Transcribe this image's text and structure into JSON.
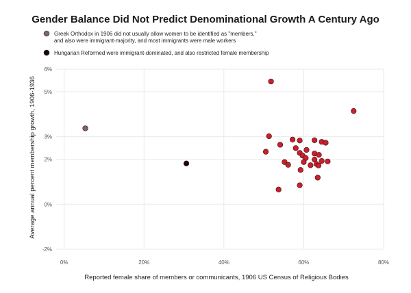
{
  "chart_data": {
    "type": "scatter",
    "title": "Gender Balance Did Not Predict Denominational Growth A Century Ago",
    "xlabel": "Reported female share of members or communicants, 1906 US Census of Religious Bodies",
    "ylabel": "Average annual percent membership growth, 1906-1936",
    "xlim": [
      -0.02,
      0.8
    ],
    "ylim": [
      -0.02,
      0.06
    ],
    "x_ticks": [
      0,
      0.2,
      0.4,
      0.6,
      0.8
    ],
    "x_tick_labels": [
      "0%",
      "20%",
      "40%",
      "60%",
      "80%"
    ],
    "y_ticks": [
      -0.02,
      0,
      0.02,
      0.03,
      0.05,
      0.06
    ],
    "y_tick_labels": [
      "-2%",
      "0%",
      "2%",
      "3%",
      "5%",
      "6%"
    ],
    "grid": true,
    "legend_placement": "top-left",
    "annotations": [
      {
        "lines": [
          "Greek Orthodox in 1906 did not usually allow women to be identified as \"members,\"",
          "and also were immigrant-majority, and most immigrants were male workers"
        ],
        "color": "#7a6570"
      },
      {
        "lines": [
          "Hungarian Reformed were immigrant-dominated, and also restricted female membership"
        ],
        "color": "#1a0a0a"
      }
    ],
    "series": [
      {
        "color": "#c8202c",
        "points": [
          [
            0.518,
            0.0545
          ],
          [
            0.725,
            0.0414
          ],
          [
            0.513,
            0.0302
          ],
          [
            0.572,
            0.0287
          ],
          [
            0.59,
            0.0283
          ],
          [
            0.627,
            0.0284
          ],
          [
            0.645,
            0.0277
          ],
          [
            0.655,
            0.0273
          ],
          [
            0.541,
            0.0264
          ],
          [
            0.58,
            0.0249
          ],
          [
            0.607,
            0.0241
          ],
          [
            0.505,
            0.0233
          ],
          [
            0.59,
            0.0228
          ],
          [
            0.627,
            0.0225
          ],
          [
            0.638,
            0.0219
          ],
          [
            0.597,
            0.0216
          ],
          [
            0.605,
            0.0205
          ],
          [
            0.627,
            0.0198
          ],
          [
            0.645,
            0.0192
          ],
          [
            0.66,
            0.019
          ],
          [
            0.552,
            0.0187
          ],
          [
            0.6,
            0.0187
          ],
          [
            0.632,
            0.0178
          ],
          [
            0.561,
            0.0175
          ],
          [
            0.617,
            0.0173
          ],
          [
            0.637,
            0.0172
          ],
          [
            0.592,
            0.0152
          ],
          [
            0.635,
            0.0118
          ],
          [
            0.59,
            0.0084
          ],
          [
            0.537,
            0.0065
          ]
        ]
      },
      {
        "color": "#7a6570",
        "points": [
          [
            0.053,
            0.0337
          ]
        ]
      },
      {
        "color": "#1a0a0a",
        "points": [
          [
            0.306,
            0.0181
          ]
        ]
      }
    ]
  }
}
